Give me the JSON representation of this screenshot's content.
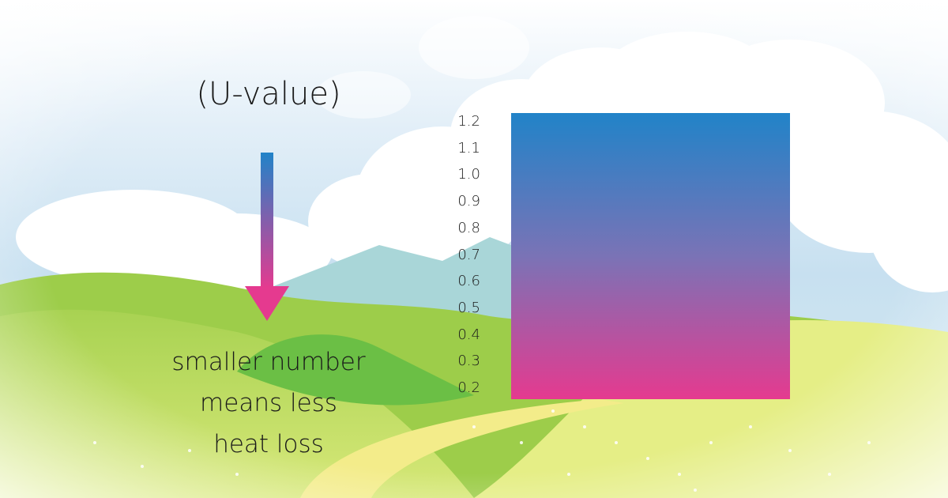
{
  "title": "(U-value)",
  "caption_lines": [
    "smaller number",
    "means less",
    "heat loss"
  ],
  "scale": {
    "ticks": [
      "1.2",
      "1.1",
      "1.0",
      "0.9",
      "0.8",
      "0.7",
      "0.6",
      "0.5",
      "0.4",
      "0.3",
      "0.2"
    ],
    "top_color": "#2183c8",
    "bottom_color": "#e53a8f"
  },
  "colors": {
    "sky": "#cfe4f2",
    "cloud": "#ffffff",
    "mountain": "#a9d6d8",
    "hill": "#8cc63f",
    "meadow": "#e9ee7a",
    "path": "#f3ec8a"
  }
}
